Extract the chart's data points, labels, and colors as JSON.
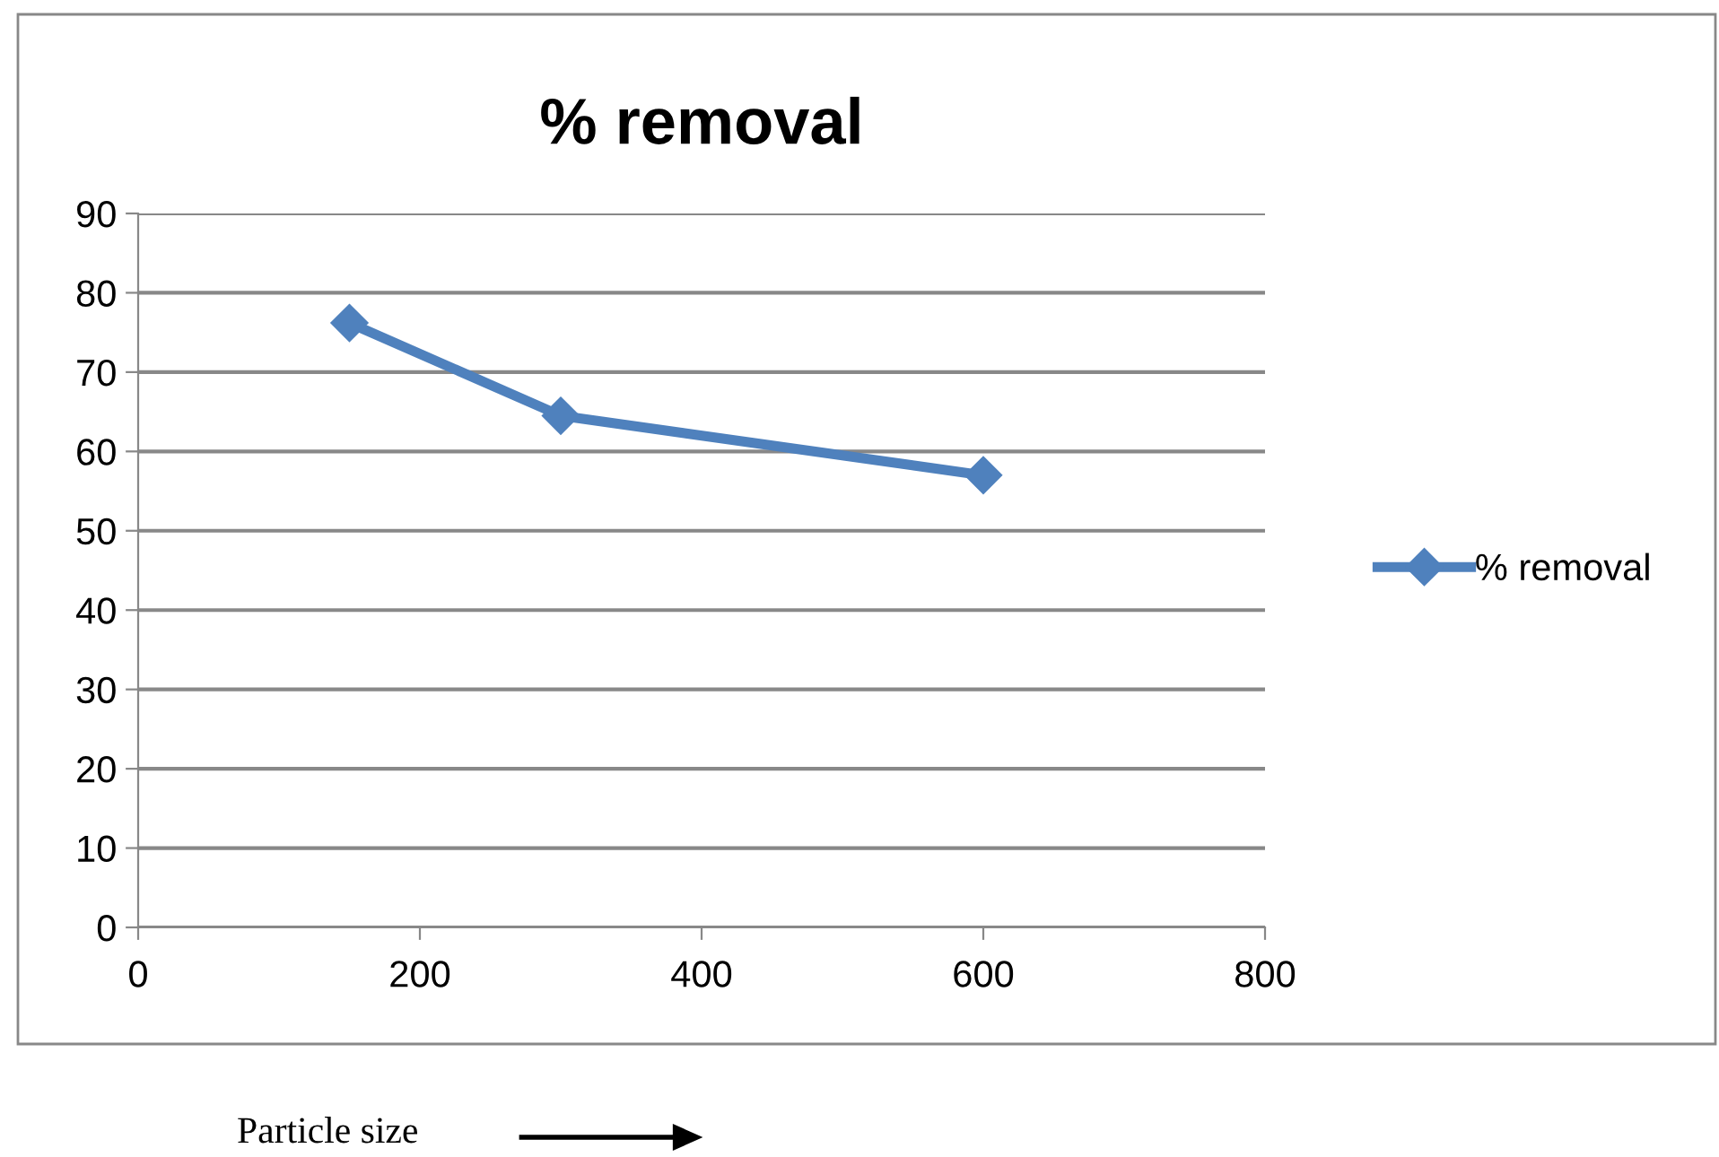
{
  "chart_data": {
    "type": "line",
    "title": "% removal",
    "xlabel": "Particle size",
    "x": [
      150,
      300,
      600
    ],
    "series": [
      {
        "name": "% removal",
        "color": "#4f81bd",
        "values": [
          76.2,
          64.5,
          57.0
        ]
      }
    ],
    "xlim": [
      0,
      800
    ],
    "xticks": [
      0,
      200,
      400,
      600,
      800
    ],
    "ylim": [
      0,
      90
    ],
    "yticks": [
      0,
      10,
      20,
      30,
      40,
      50,
      60,
      70,
      80,
      90
    ],
    "grid": "y",
    "legend": "right",
    "marker": "diamond",
    "line_style": "solid"
  }
}
